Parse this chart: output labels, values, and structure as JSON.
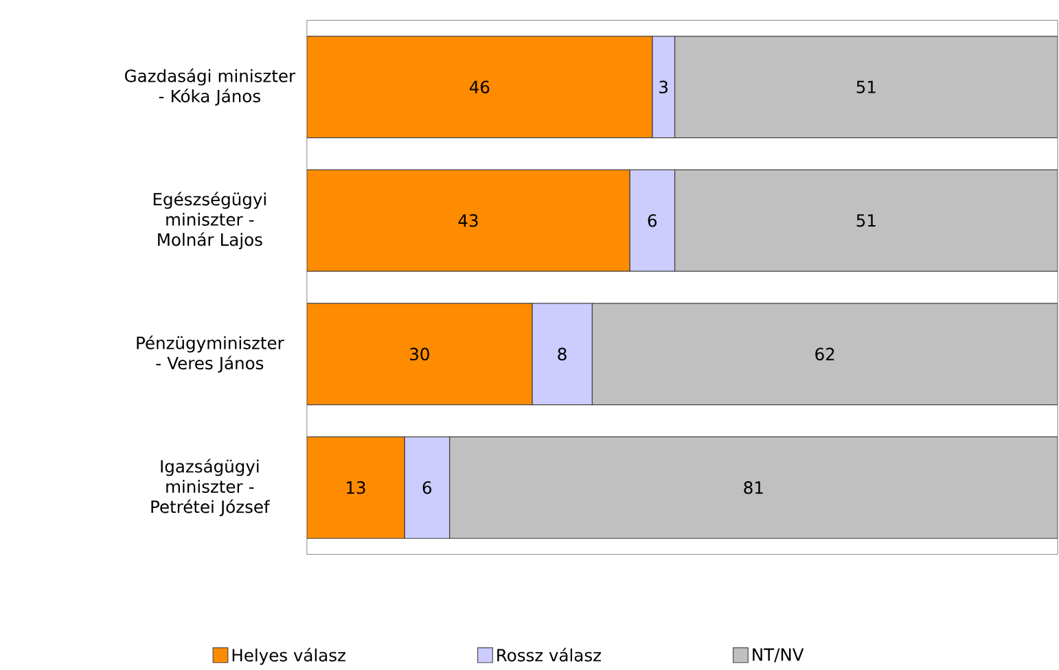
{
  "chart_data": {
    "type": "bar",
    "orientation": "horizontal",
    "stacked": true,
    "categories": [
      "Gazdasági miniszter - Kóka János",
      "Egészségügyi miniszter - Molnár Lajos",
      "Pénzügyminiszter - Veres János",
      "Igazságügyi miniszter - Petrétei József"
    ],
    "series": [
      {
        "name": "Helyes válasz",
        "color": "#ff8c00",
        "values": [
          46,
          43,
          30,
          13
        ]
      },
      {
        "name": "Rossz válasz",
        "color": "#ccccff",
        "values": [
          3,
          6,
          8,
          6
        ]
      },
      {
        "name": "NT/NV",
        "color": "#c0c0c0",
        "values": [
          51,
          51,
          62,
          81
        ]
      }
    ],
    "data_labels": true,
    "tick_labels": "y",
    "legend": "bottom"
  }
}
